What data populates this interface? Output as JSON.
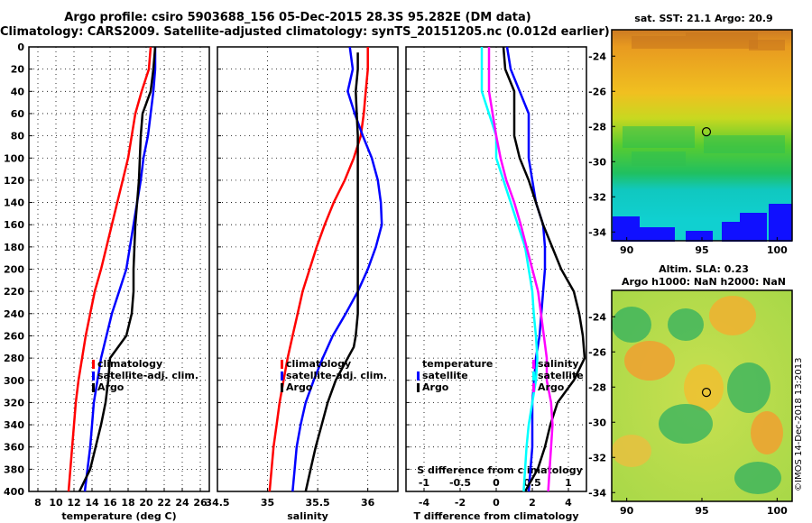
{
  "header": {
    "title_line1": "Argo profile: csiro 5903688_156 05-Dec-2015 28.3S 95.282E (DM data)",
    "title_line2": "Climatology: CARS2009. Satellite-adjusted climatology: synTS_20151205.nc (0.012d earlier)"
  },
  "credit": "©IMOS 14-Dec-2018 13:2013",
  "colors": {
    "climatology": "#ff0000",
    "satellite": "#0000ff",
    "argo": "#000000",
    "cyan": "#00ffff",
    "magenta": "#ff00ff"
  },
  "chart_data": [
    {
      "type": "line",
      "id": "temperature",
      "xlabel": "temperature (deg C)",
      "ylabel": "",
      "xlim": [
        7,
        27
      ],
      "ylim": [
        400,
        0
      ],
      "xticks": [
        "8",
        "10",
        "12",
        "14",
        "16",
        "18",
        "20",
        "22",
        "24",
        "26"
      ],
      "xtick_values": [
        8,
        10,
        12,
        14,
        16,
        18,
        20,
        22,
        24,
        26
      ],
      "yticks": [
        "0",
        "20",
        "40",
        "60",
        "80",
        "100",
        "120",
        "140",
        "160",
        "180",
        "200",
        "220",
        "240",
        "260",
        "280",
        "300",
        "320",
        "340",
        "360",
        "380",
        "400"
      ],
      "legend": [
        "climatology",
        "satellite-adj. clim.",
        "Argo"
      ],
      "series": [
        {
          "name": "climatology",
          "color": "#ff0000",
          "points": [
            [
              20.5,
              0
            ],
            [
              20.3,
              20
            ],
            [
              19.5,
              40
            ],
            [
              18.8,
              60
            ],
            [
              18.4,
              80
            ],
            [
              18.0,
              100
            ],
            [
              17.4,
              120
            ],
            [
              16.8,
              140
            ],
            [
              16.2,
              160
            ],
            [
              15.6,
              180
            ],
            [
              15.0,
              200
            ],
            [
              14.3,
              220
            ],
            [
              13.8,
              240
            ],
            [
              13.3,
              260
            ],
            [
              12.9,
              280
            ],
            [
              12.5,
              300
            ],
            [
              12.2,
              320
            ],
            [
              12.0,
              340
            ],
            [
              11.8,
              360
            ],
            [
              11.6,
              380
            ],
            [
              11.4,
              400
            ]
          ]
        },
        {
          "name": "satellite-adj. clim.",
          "color": "#0000ff",
          "points": [
            [
              21.0,
              0
            ],
            [
              21.0,
              20
            ],
            [
              20.8,
              40
            ],
            [
              20.5,
              60
            ],
            [
              20.2,
              80
            ],
            [
              19.7,
              100
            ],
            [
              19.4,
              120
            ],
            [
              19.0,
              140
            ],
            [
              18.6,
              160
            ],
            [
              18.2,
              180
            ],
            [
              17.8,
              200
            ],
            [
              17.0,
              220
            ],
            [
              16.2,
              240
            ],
            [
              15.6,
              260
            ],
            [
              15.0,
              280
            ],
            [
              14.6,
              300
            ],
            [
              14.2,
              320
            ],
            [
              14.0,
              340
            ],
            [
              13.8,
              360
            ],
            [
              13.5,
              380
            ],
            [
              13.2,
              400
            ]
          ]
        },
        {
          "name": "Argo",
          "color": "#000000",
          "points": [
            [
              21.0,
              0
            ],
            [
              20.8,
              20
            ],
            [
              20.5,
              40
            ],
            [
              19.6,
              60
            ],
            [
              19.4,
              80
            ],
            [
              19.3,
              100
            ],
            [
              19.2,
              120
            ],
            [
              19.0,
              140
            ],
            [
              18.8,
              160
            ],
            [
              18.7,
              180
            ],
            [
              18.6,
              200
            ],
            [
              18.6,
              220
            ],
            [
              18.4,
              240
            ],
            [
              17.8,
              260
            ],
            [
              16.0,
              280
            ],
            [
              15.8,
              300
            ],
            [
              15.5,
              320
            ],
            [
              15.0,
              340
            ],
            [
              14.4,
              360
            ],
            [
              13.8,
              380
            ],
            [
              12.6,
              400
            ]
          ]
        }
      ]
    },
    {
      "type": "line",
      "id": "salinity",
      "xlabel": "salinity",
      "xlim": [
        34.5,
        36.3
      ],
      "ylim": [
        400,
        0
      ],
      "xticks": [
        "34.5",
        "35",
        "35.5",
        "36"
      ],
      "xtick_values": [
        34.5,
        35,
        35.5,
        36
      ],
      "legend": [
        "climatology",
        "satellite-adj. clim.",
        "Argo"
      ],
      "series": [
        {
          "name": "climatology",
          "color": "#ff0000",
          "points": [
            [
              36.0,
              0
            ],
            [
              36.0,
              20
            ],
            [
              35.98,
              40
            ],
            [
              35.96,
              60
            ],
            [
              35.93,
              80
            ],
            [
              35.86,
              100
            ],
            [
              35.77,
              120
            ],
            [
              35.66,
              140
            ],
            [
              35.57,
              160
            ],
            [
              35.49,
              180
            ],
            [
              35.42,
              200
            ],
            [
              35.35,
              220
            ],
            [
              35.3,
              240
            ],
            [
              35.25,
              260
            ],
            [
              35.2,
              280
            ],
            [
              35.16,
              300
            ],
            [
              35.12,
              320
            ],
            [
              35.09,
              340
            ],
            [
              35.06,
              360
            ],
            [
              35.04,
              380
            ],
            [
              35.02,
              400
            ]
          ]
        },
        {
          "name": "satellite-adj. clim.",
          "color": "#0000ff",
          "points": [
            [
              35.82,
              0
            ],
            [
              35.85,
              20
            ],
            [
              35.8,
              40
            ],
            [
              35.87,
              60
            ],
            [
              35.95,
              80
            ],
            [
              36.04,
              100
            ],
            [
              36.1,
              120
            ],
            [
              36.13,
              140
            ],
            [
              36.14,
              160
            ],
            [
              36.08,
              180
            ],
            [
              36.0,
              200
            ],
            [
              35.9,
              220
            ],
            [
              35.78,
              240
            ],
            [
              35.65,
              260
            ],
            [
              35.55,
              280
            ],
            [
              35.46,
              300
            ],
            [
              35.38,
              320
            ],
            [
              35.33,
              340
            ],
            [
              35.29,
              360
            ],
            [
              35.27,
              380
            ],
            [
              35.25,
              400
            ]
          ]
        },
        {
          "name": "Argo",
          "color": "#000000",
          "points": [
            [
              35.9,
              5
            ],
            [
              35.9,
              20
            ],
            [
              35.88,
              40
            ],
            [
              35.89,
              60
            ],
            [
              35.9,
              80
            ],
            [
              35.9,
              100
            ],
            [
              35.9,
              120
            ],
            [
              35.9,
              140
            ],
            [
              35.9,
              160
            ],
            [
              35.9,
              180
            ],
            [
              35.9,
              200
            ],
            [
              35.9,
              220
            ],
            [
              35.9,
              240
            ],
            [
              35.88,
              260
            ],
            [
              35.86,
              270
            ],
            [
              35.8,
              280
            ],
            [
              35.68,
              300
            ],
            [
              35.6,
              320
            ],
            [
              35.54,
              340
            ],
            [
              35.48,
              360
            ],
            [
              35.43,
              380
            ],
            [
              35.38,
              400
            ]
          ]
        }
      ]
    },
    {
      "type": "line",
      "id": "difference",
      "xlabel": "T difference from climatology",
      "xlabel_top": "S difference from climatology",
      "xlim": [
        -5,
        5
      ],
      "ylim": [
        400,
        0
      ],
      "xticks": [
        "-4",
        "-2",
        "0",
        "2",
        "4"
      ],
      "xtick_values": [
        -4,
        -2,
        0,
        2,
        4
      ],
      "xticks_top": [
        "-1",
        "-0.5",
        "0",
        "0.5",
        "1"
      ],
      "xtick_top_values": [
        -1,
        -0.5,
        0,
        0.5,
        1
      ],
      "legend_left": [
        "temperature",
        "satellite",
        "Argo"
      ],
      "legend_right": [
        "salinity",
        "satellite",
        "Argo"
      ],
      "series": [
        {
          "name": "T satellite",
          "color": "#0000ff",
          "points": [
            [
              0.6,
              0
            ],
            [
              0.8,
              20
            ],
            [
              1.3,
              40
            ],
            [
              1.8,
              60
            ],
            [
              1.8,
              80
            ],
            [
              1.8,
              100
            ],
            [
              2.0,
              120
            ],
            [
              2.2,
              140
            ],
            [
              2.6,
              160
            ],
            [
              2.7,
              180
            ],
            [
              2.7,
              200
            ],
            [
              2.6,
              220
            ],
            [
              2.5,
              240
            ],
            [
              2.4,
              260
            ],
            [
              2.2,
              280
            ],
            [
              2.1,
              300
            ],
            [
              2.0,
              320
            ],
            [
              2.0,
              340
            ],
            [
              2.0,
              360
            ],
            [
              1.9,
              380
            ],
            [
              1.8,
              400
            ]
          ]
        },
        {
          "name": "T Argo",
          "color": "#000000",
          "points": [
            [
              0.4,
              0
            ],
            [
              0.5,
              20
            ],
            [
              1.0,
              40
            ],
            [
              1.0,
              60
            ],
            [
              1.0,
              80
            ],
            [
              1.3,
              100
            ],
            [
              1.8,
              120
            ],
            [
              2.2,
              140
            ],
            [
              2.6,
              160
            ],
            [
              3.1,
              180
            ],
            [
              3.6,
              200
            ],
            [
              4.3,
              220
            ],
            [
              4.6,
              240
            ],
            [
              4.8,
              260
            ],
            [
              4.9,
              280
            ],
            [
              4.3,
              300
            ],
            [
              3.4,
              320
            ],
            [
              3.0,
              340
            ],
            [
              2.7,
              360
            ],
            [
              2.3,
              380
            ],
            [
              1.6,
              400
            ]
          ]
        },
        {
          "name": "S satellite",
          "color": "#00ffff",
          "points": [
            [
              -0.2,
              0
            ],
            [
              -0.2,
              20
            ],
            [
              -0.2,
              40
            ],
            [
              -0.1,
              60
            ],
            [
              0.0,
              80
            ],
            [
              0.0,
              100
            ],
            [
              0.1,
              120
            ],
            [
              0.2,
              140
            ],
            [
              0.3,
              160
            ],
            [
              0.4,
              180
            ],
            [
              0.45,
              200
            ],
            [
              0.5,
              220
            ],
            [
              0.52,
              240
            ],
            [
              0.55,
              260
            ],
            [
              0.57,
              280
            ],
            [
              0.55,
              300
            ],
            [
              0.5,
              320
            ],
            [
              0.45,
              340
            ],
            [
              0.42,
              360
            ],
            [
              0.4,
              380
            ],
            [
              0.38,
              400
            ]
          ]
        },
        {
          "name": "S Argo",
          "color": "#ff00ff",
          "points": [
            [
              -0.1,
              0
            ],
            [
              -0.1,
              20
            ],
            [
              -0.1,
              40
            ],
            [
              -0.05,
              60
            ],
            [
              0.0,
              80
            ],
            [
              0.06,
              100
            ],
            [
              0.14,
              120
            ],
            [
              0.25,
              140
            ],
            [
              0.34,
              160
            ],
            [
              0.42,
              180
            ],
            [
              0.5,
              200
            ],
            [
              0.58,
              220
            ],
            [
              0.62,
              240
            ],
            [
              0.66,
              260
            ],
            [
              0.7,
              280
            ],
            [
              0.7,
              300
            ],
            [
              0.76,
              320
            ],
            [
              0.78,
              340
            ],
            [
              0.76,
              360
            ],
            [
              0.74,
              380
            ],
            [
              0.72,
              400
            ]
          ]
        }
      ]
    },
    {
      "type": "heatmap",
      "id": "sst_map",
      "title": "sat. SST: 21.1 Argo: 20.9",
      "xticks": [
        "90",
        "95",
        "100"
      ],
      "xtick_values": [
        90,
        95,
        100
      ],
      "yticks": [
        "-24",
        "-26",
        "-28",
        "-30",
        "-32",
        "-34"
      ],
      "ytick_values": [
        -24,
        -26,
        -28,
        -30,
        -32,
        -34
      ],
      "xlim": [
        89,
        101
      ],
      "ylim": [
        -22.5,
        -34.5
      ],
      "marker": [
        95.3,
        -28.3
      ]
    },
    {
      "type": "heatmap",
      "id": "sla_map",
      "title": "Altim. SLA: 0.23",
      "subtitle": "Argo h1000: NaN h2000: NaN",
      "xticks": [
        "90",
        "95",
        "100"
      ],
      "xtick_values": [
        90,
        95,
        100
      ],
      "yticks": [
        "-24",
        "-26",
        "-28",
        "-30",
        "-32",
        "-34"
      ],
      "ytick_values": [
        -24,
        -26,
        -28,
        -30,
        -32,
        -34
      ],
      "xlim": [
        89,
        101
      ],
      "ylim": [
        -22.5,
        -34.5
      ],
      "marker": [
        95.3,
        -28.3
      ]
    }
  ]
}
